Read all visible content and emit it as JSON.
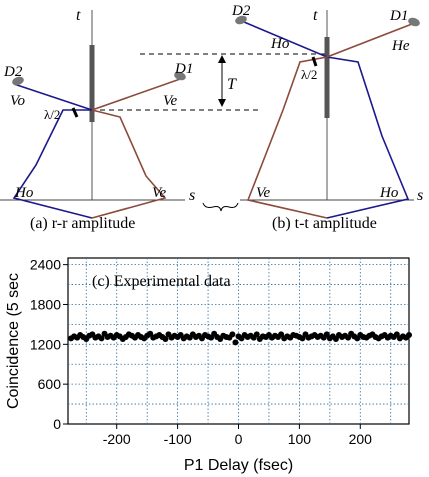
{
  "diagram_a": {
    "axis_t": "t",
    "axis_s": "s",
    "detector1": "D1",
    "detector2": "D2",
    "label_vo": "Vo",
    "label_ve": "Ve",
    "label_ho": "Ho",
    "label_ve_bottom": "Ve",
    "waveplate": "λ/2",
    "caption": "(a) r-r amplitude"
  },
  "diagram_b": {
    "axis_t": "t",
    "axis_s": "s",
    "detector1": "D1",
    "detector2": "D2",
    "label_ho": "Ho",
    "label_he": "He",
    "label_ve_bottom": "Ve",
    "label_ho_bottom": "Ho",
    "waveplate": "λ/2",
    "interval": "T",
    "caption": "(b) t-t amplitude"
  },
  "colors": {
    "blue": "#1a1a8c",
    "brown": "#8b4a3c",
    "dot": "#000000",
    "grid": "#2f6f9f"
  },
  "chart_data": {
    "type": "scatter",
    "title": "",
    "annotation": "(c) Experimental data",
    "xlabel": "P1 Delay (fsec)",
    "ylabel": "Coincidence (5 sec",
    "xlim": [
      -280,
      280
    ],
    "ylim": [
      0,
      2500
    ],
    "xticks": [
      -200,
      -100,
      0,
      100,
      200
    ],
    "yticks": [
      0,
      600,
      1200,
      1800,
      2400
    ],
    "grid": true,
    "x_start": -275,
    "x_step": 5,
    "values": [
      1290,
      1320,
      1300,
      1340,
      1310,
      1280,
      1330,
      1350,
      1300,
      1320,
      1290,
      1360,
      1310,
      1330,
      1300,
      1340,
      1320,
      1280,
      1310,
      1350,
      1330,
      1300,
      1340,
      1310,
      1290,
      1330,
      1360,
      1300,
      1320,
      1340,
      1310,
      1280,
      1350,
      1300,
      1330,
      1310,
      1340,
      1290,
      1320,
      1300,
      1350,
      1310,
      1330,
      1290,
      1340,
      1320,
      1300,
      1360,
      1310,
      1280,
      1330,
      1310,
      1300,
      1350,
      1230,
      1320,
      1290,
      1340,
      1310,
      1330,
      1300,
      1350,
      1280,
      1320,
      1310,
      1340,
      1300,
      1330,
      1310,
      1350,
      1290,
      1320,
      1300,
      1340,
      1330,
      1310,
      1290,
      1350,
      1300,
      1320,
      1340,
      1310,
      1330,
      1300,
      1350,
      1290,
      1320,
      1280,
      1340,
      1310,
      1330,
      1300,
      1360,
      1320,
      1290,
      1340,
      1310,
      1300,
      1330,
      1350,
      1310,
      1290,
      1320,
      1340,
      1300,
      1330,
      1310,
      1350,
      1290,
      1320,
      1300,
      1340,
      1310
    ]
  }
}
